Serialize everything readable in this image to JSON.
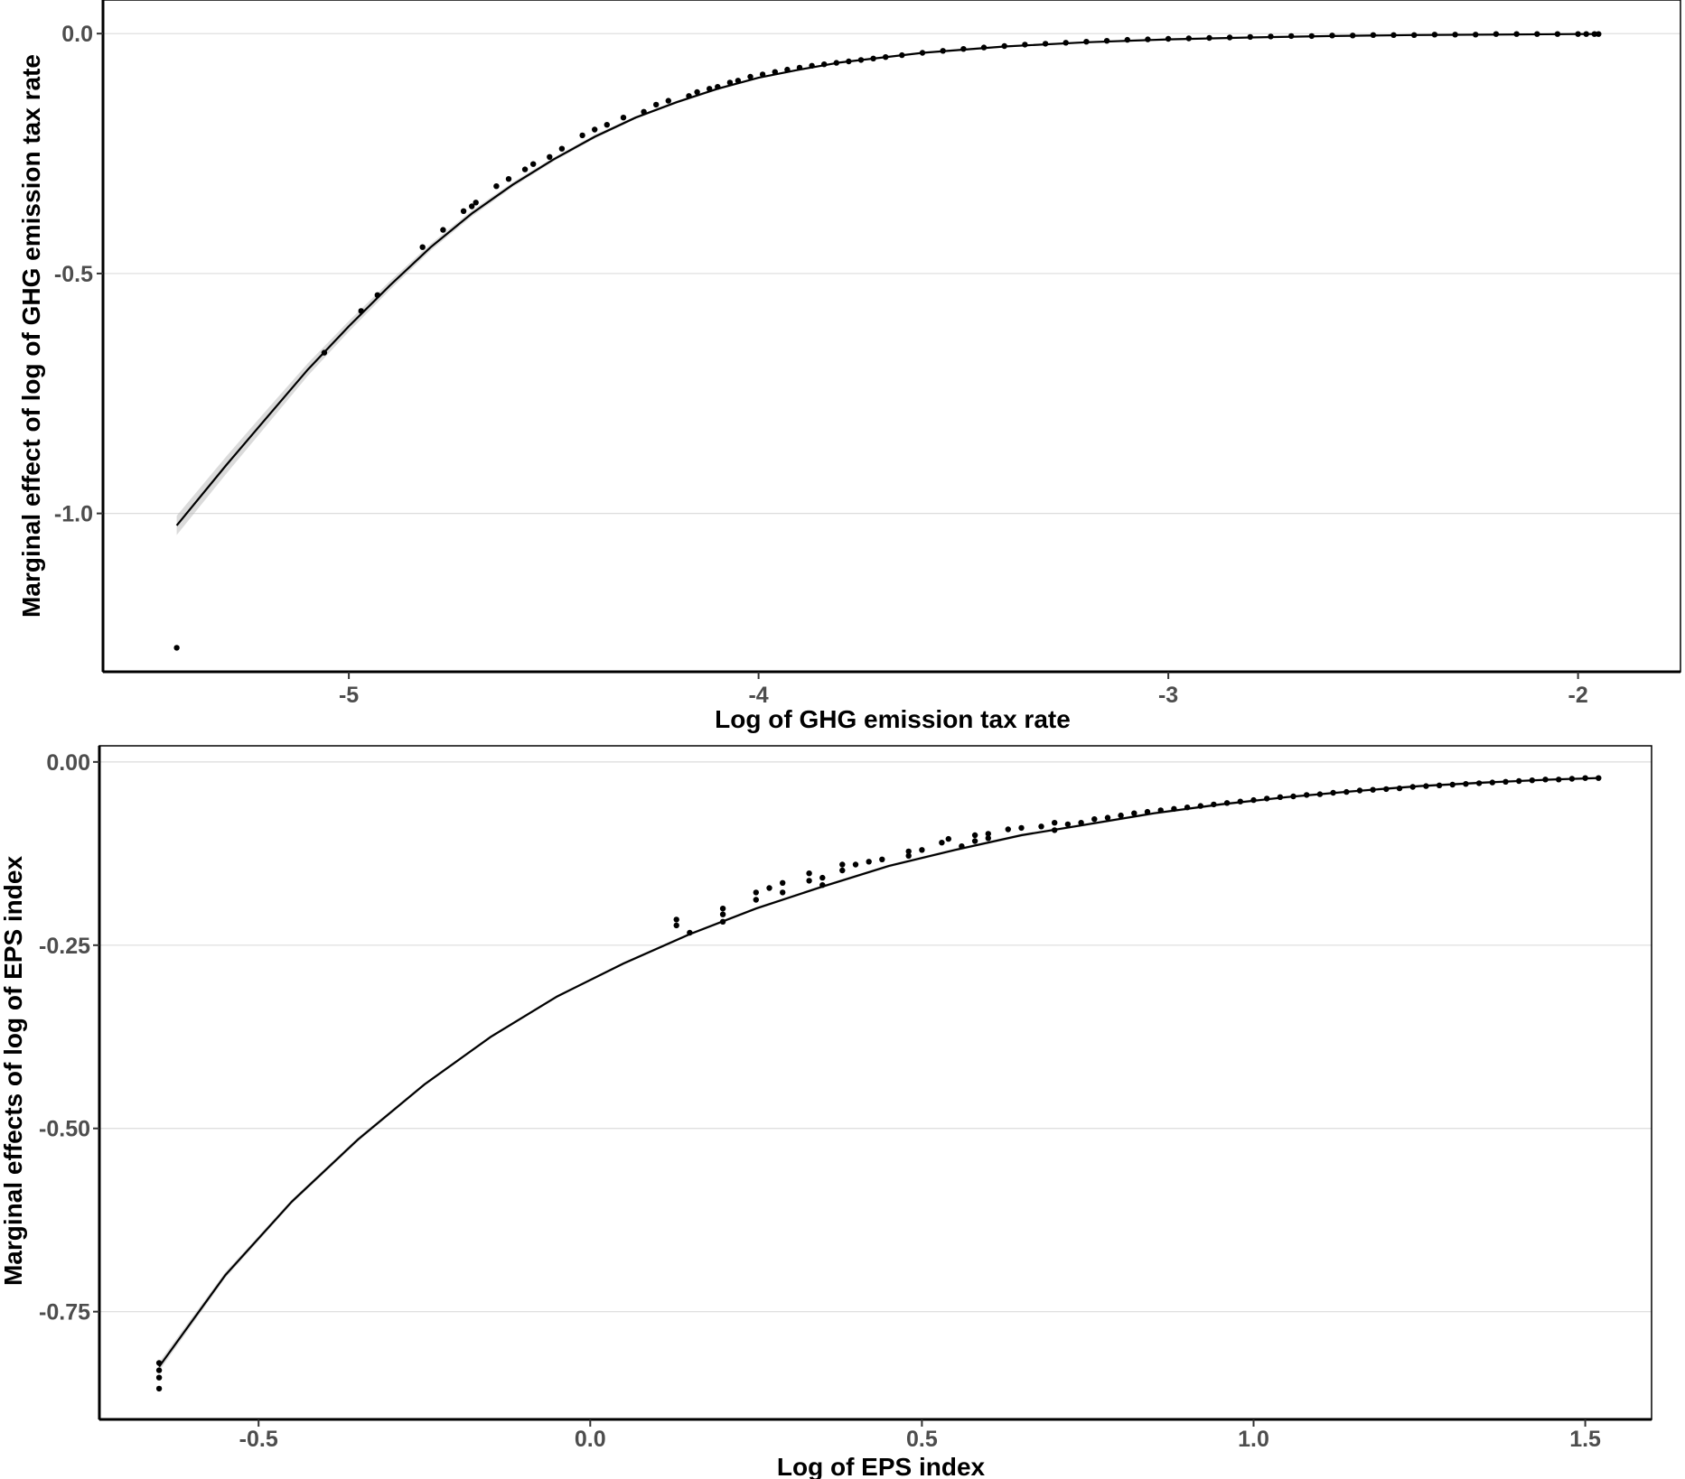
{
  "chart_data": [
    {
      "type": "scatter",
      "xlabel": "Log of GHG emission tax rate",
      "ylabel": "Marginal effect of log of GHG emission tax rate",
      "xlim": [
        -5.6,
        -1.75
      ],
      "ylim": [
        -1.33,
        0.07
      ],
      "x_ticks": [
        {
          "value": -5,
          "label": "-5"
        },
        {
          "value": -4,
          "label": "-4"
        },
        {
          "value": -3,
          "label": "-3"
        },
        {
          "value": -2,
          "label": "-2"
        }
      ],
      "y_ticks": [
        {
          "value": 0,
          "label": "0.0"
        },
        {
          "value": -0.5,
          "label": "-0.5"
        },
        {
          "value": -1,
          "label": "-1.0"
        }
      ],
      "grid": "horizontal",
      "fit_line": {
        "x": [
          -5.42,
          -5.3,
          -5.2,
          -5.1,
          -5.0,
          -4.9,
          -4.8,
          -4.7,
          -4.6,
          -4.5,
          -4.4,
          -4.3,
          -4.2,
          -4.1,
          -4.0,
          -3.9,
          -3.8,
          -3.6,
          -3.4,
          -3.2,
          -3.0,
          -2.8,
          -2.6,
          -2.4,
          -2.2,
          -2.0,
          -1.95
        ],
        "y": [
          -1.025,
          -0.9,
          -0.8,
          -0.7,
          -0.61,
          -0.525,
          -0.445,
          -0.375,
          -0.315,
          -0.262,
          -0.215,
          -0.175,
          -0.143,
          -0.115,
          -0.092,
          -0.075,
          -0.06,
          -0.04,
          -0.027,
          -0.018,
          -0.012,
          -0.008,
          -0.005,
          -0.003,
          -0.002,
          -0.001,
          -0.001
        ],
        "ci_halfwidth": [
          0.02,
          0.018,
          0.016,
          0.013,
          0.011,
          0.009,
          0.007,
          0.006,
          0.005,
          0.004,
          0.004,
          0.003,
          0.003,
          0.003,
          0.002,
          0.002,
          0.002,
          0.002,
          0.002,
          0.002,
          0.002,
          0.002,
          0.002,
          0.002,
          0.002,
          0.002,
          0.002
        ]
      },
      "points": {
        "x": [
          -5.42,
          -5.06,
          -4.97,
          -4.93,
          -4.82,
          -4.77,
          -4.72,
          -4.7,
          -4.69,
          -4.64,
          -4.61,
          -4.57,
          -4.55,
          -4.51,
          -4.48,
          -4.43,
          -4.4,
          -4.37,
          -4.33,
          -4.28,
          -4.25,
          -4.22,
          -4.17,
          -4.15,
          -4.12,
          -4.1,
          -4.07,
          -4.05,
          -4.02,
          -3.99,
          -3.96,
          -3.93,
          -3.9,
          -3.87,
          -3.84,
          -3.81,
          -3.78,
          -3.75,
          -3.72,
          -3.69,
          -3.65,
          -3.6,
          -3.55,
          -3.5,
          -3.45,
          -3.4,
          -3.35,
          -3.3,
          -3.25,
          -3.2,
          -3.15,
          -3.1,
          -3.05,
          -3.0,
          -2.95,
          -2.9,
          -2.85,
          -2.8,
          -2.75,
          -2.7,
          -2.65,
          -2.6,
          -2.55,
          -2.5,
          -2.45,
          -2.4,
          -2.35,
          -2.3,
          -2.25,
          -2.2,
          -2.15,
          -2.1,
          -2.05,
          -2.0,
          -1.98,
          -1.96,
          -1.95
        ],
        "y": [
          -1.28,
          -0.665,
          -0.578,
          -0.545,
          -0.445,
          -0.409,
          -0.37,
          -0.36,
          -0.352,
          -0.318,
          -0.303,
          -0.283,
          -0.272,
          -0.257,
          -0.24,
          -0.212,
          -0.2,
          -0.19,
          -0.175,
          -0.163,
          -0.148,
          -0.14,
          -0.13,
          -0.122,
          -0.115,
          -0.111,
          -0.102,
          -0.098,
          -0.09,
          -0.085,
          -0.08,
          -0.075,
          -0.071,
          -0.067,
          -0.064,
          -0.061,
          -0.058,
          -0.055,
          -0.052,
          -0.049,
          -0.045,
          -0.04,
          -0.036,
          -0.032,
          -0.029,
          -0.026,
          -0.023,
          -0.021,
          -0.019,
          -0.017,
          -0.015,
          -0.013,
          -0.012,
          -0.011,
          -0.01,
          -0.009,
          -0.008,
          -0.007,
          -0.006,
          -0.005,
          -0.005,
          -0.004,
          -0.004,
          -0.003,
          -0.003,
          -0.003,
          -0.002,
          -0.002,
          -0.002,
          -0.001,
          -0.001,
          -0.001,
          -0.001,
          -0.001,
          -0.001,
          -0.001,
          -0.001
        ]
      }
    },
    {
      "type": "scatter",
      "xlabel": "Log of EPS index",
      "ylabel": "Marginal effects of log of EPS index",
      "xlim": [
        -0.74,
        1.6
      ],
      "ylim": [
        -0.897,
        0.022
      ],
      "x_ticks": [
        {
          "value": -0.5,
          "label": "-0.5"
        },
        {
          "value": 0,
          "label": "0.0"
        },
        {
          "value": 0.5,
          "label": "0.5"
        },
        {
          "value": 1,
          "label": "1.0"
        },
        {
          "value": 1.5,
          "label": "1.5"
        }
      ],
      "y_ticks": [
        {
          "value": 0,
          "label": "0.00"
        },
        {
          "value": -0.25,
          "label": "-0.25"
        },
        {
          "value": -0.5,
          "label": "-0.50"
        },
        {
          "value": -0.75,
          "label": "-0.75"
        }
      ],
      "grid": "horizontal",
      "fit_line": {
        "x": [
          -0.65,
          -0.55,
          -0.45,
          -0.35,
          -0.25,
          -0.15,
          -0.05,
          0.05,
          0.15,
          0.25,
          0.35,
          0.45,
          0.55,
          0.65,
          0.75,
          0.85,
          0.95,
          1.05,
          1.15,
          1.25,
          1.35,
          1.45,
          1.52
        ],
        "y": [
          -0.825,
          -0.7,
          -0.6,
          -0.515,
          -0.44,
          -0.375,
          -0.32,
          -0.275,
          -0.235,
          -0.2,
          -0.17,
          -0.142,
          -0.12,
          -0.1,
          -0.085,
          -0.07,
          -0.058,
          -0.048,
          -0.04,
          -0.033,
          -0.028,
          -0.024,
          -0.022
        ],
        "ci_halfwidth": [
          0.006,
          0.004,
          0.003,
          0.003,
          0.002,
          0.002,
          0.002,
          0.002,
          0.002,
          0.002,
          0.002,
          0.002,
          0.002,
          0.002,
          0.002,
          0.002,
          0.002,
          0.002,
          0.002,
          0.002,
          0.002,
          0.002,
          0.002
        ]
      },
      "points": {
        "x": [
          -0.65,
          -0.65,
          -0.65,
          -0.65,
          0.13,
          0.13,
          0.15,
          0.2,
          0.2,
          0.2,
          0.25,
          0.25,
          0.27,
          0.29,
          0.29,
          0.33,
          0.33,
          0.35,
          0.35,
          0.38,
          0.38,
          0.4,
          0.42,
          0.44,
          0.48,
          0.48,
          0.5,
          0.53,
          0.54,
          0.56,
          0.58,
          0.58,
          0.6,
          0.6,
          0.63,
          0.65,
          0.68,
          0.7,
          0.7,
          0.72,
          0.74,
          0.76,
          0.78,
          0.8,
          0.82,
          0.84,
          0.86,
          0.88,
          0.9,
          0.92,
          0.94,
          0.96,
          0.98,
          1.0,
          1.02,
          1.04,
          1.06,
          1.08,
          1.1,
          1.12,
          1.14,
          1.16,
          1.18,
          1.2,
          1.22,
          1.24,
          1.26,
          1.28,
          1.3,
          1.32,
          1.34,
          1.36,
          1.38,
          1.4,
          1.42,
          1.44,
          1.46,
          1.48,
          1.5,
          1.52
        ],
        "y": [
          -0.82,
          -0.83,
          -0.84,
          -0.855,
          -0.215,
          -0.223,
          -0.233,
          -0.2,
          -0.208,
          -0.218,
          -0.178,
          -0.188,
          -0.172,
          -0.165,
          -0.178,
          -0.152,
          -0.162,
          -0.158,
          -0.168,
          -0.14,
          -0.148,
          -0.14,
          -0.136,
          -0.133,
          -0.122,
          -0.128,
          -0.12,
          -0.11,
          -0.105,
          -0.115,
          -0.1,
          -0.108,
          -0.098,
          -0.104,
          -0.092,
          -0.09,
          -0.088,
          -0.083,
          -0.093,
          -0.085,
          -0.083,
          -0.078,
          -0.076,
          -0.073,
          -0.07,
          -0.068,
          -0.066,
          -0.064,
          -0.062,
          -0.06,
          -0.058,
          -0.056,
          -0.054,
          -0.052,
          -0.05,
          -0.048,
          -0.047,
          -0.045,
          -0.044,
          -0.042,
          -0.041,
          -0.039,
          -0.038,
          -0.037,
          -0.036,
          -0.034,
          -0.033,
          -0.032,
          -0.031,
          -0.03,
          -0.029,
          -0.028,
          -0.027,
          -0.026,
          -0.025,
          -0.024,
          -0.024,
          -0.023,
          -0.022,
          -0.022
        ]
      }
    }
  ]
}
